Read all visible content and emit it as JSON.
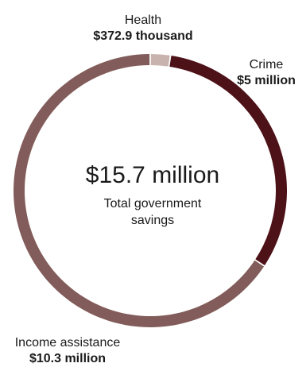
{
  "chart_data": {
    "type": "pie",
    "variant": "donut",
    "total": {
      "value": "$15.7 million",
      "caption": "Total government savings"
    },
    "slices": [
      {
        "name": "Health",
        "label": "$372.9 thousand",
        "value": 0.3729,
        "color": "#c9b3ae"
      },
      {
        "name": "Crime",
        "label": "$5 million",
        "value": 5.0,
        "color": "#4d1118"
      },
      {
        "name": "Income assistance",
        "label": "$10.3 million",
        "value": 10.3,
        "color": "#825c5a"
      }
    ],
    "unit": "$ million"
  }
}
